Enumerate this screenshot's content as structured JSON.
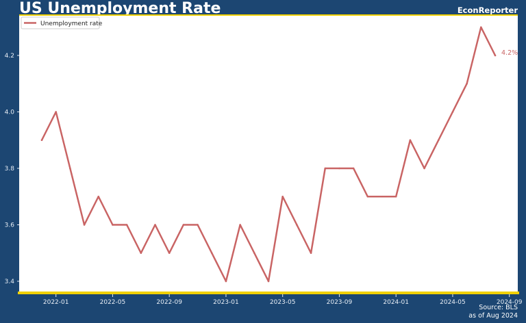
{
  "header": {
    "title": "US Unemployment Rate",
    "brand": "EconReporter"
  },
  "footer": {
    "source": "Source: BLS",
    "as_of": "as of Aug 2024"
  },
  "colors": {
    "background": "#1c4672",
    "accent": "#f0d000",
    "series": "#c96464"
  },
  "chart_data": {
    "type": "line",
    "title": "US Unemployment Rate",
    "xlabel": "",
    "ylabel": "",
    "ylim": [
      3.35,
      4.35
    ],
    "yticks": [
      3.4,
      3.6,
      3.8,
      4.0,
      4.2
    ],
    "ytick_labels": [
      "3.4",
      "3.6",
      "3.8",
      "4.0",
      "4.2"
    ],
    "xlim": [
      "2021-10-15",
      "2024-09-15"
    ],
    "xticks": [
      "2022-01",
      "2022-05",
      "2022-09",
      "2023-01",
      "2023-05",
      "2023-09",
      "2024-01",
      "2024-05",
      "2024-09"
    ],
    "grid": false,
    "legend_position": "top-left",
    "end_label": "4.2%",
    "series": [
      {
        "name": "Unemployment rate",
        "color": "#c96464",
        "x": [
          "2021-12",
          "2022-01",
          "2022-02",
          "2022-03",
          "2022-04",
          "2022-05",
          "2022-06",
          "2022-07",
          "2022-08",
          "2022-09",
          "2022-10",
          "2022-11",
          "2022-12",
          "2023-01",
          "2023-02",
          "2023-03",
          "2023-04",
          "2023-05",
          "2023-06",
          "2023-07",
          "2023-08",
          "2023-09",
          "2023-10",
          "2023-11",
          "2023-12",
          "2024-01",
          "2024-02",
          "2024-03",
          "2024-04",
          "2024-05",
          "2024-06",
          "2024-07",
          "2024-08"
        ],
        "values": [
          3.9,
          4.0,
          3.8,
          3.6,
          3.7,
          3.6,
          3.6,
          3.5,
          3.6,
          3.5,
          3.6,
          3.6,
          3.5,
          3.4,
          3.6,
          3.5,
          3.4,
          3.7,
          3.6,
          3.5,
          3.8,
          3.8,
          3.8,
          3.7,
          3.7,
          3.7,
          3.9,
          3.8,
          3.9,
          4.0,
          4.1,
          4.3,
          4.2
        ]
      }
    ]
  }
}
